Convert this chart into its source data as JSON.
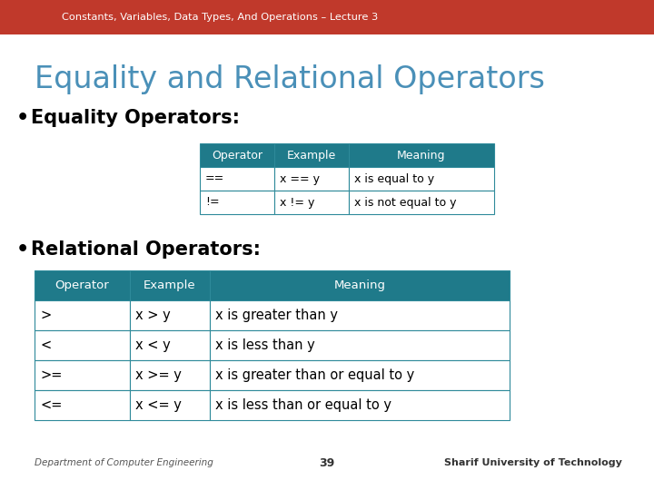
{
  "header_text": "Constants, Variables, Data Types, And Operations – Lecture 3",
  "header_bg": "#c0392b",
  "header_text_color": "#ffffff",
  "slide_bg": "#ffffff",
  "title": "Equality and Relational Operators",
  "title_color": "#4a90b8",
  "bullet1": "Equality Operators:",
  "bullet2": "Relational Operators:",
  "bullet_color": "#000000",
  "table_header_bg": "#1f7a8a",
  "table_header_text": "#ffffff",
  "table_border_color": "#2e8a9a",
  "table_data_bg": "#ffffff",
  "table_data_text": "#000000",
  "eq_table": {
    "headers": [
      "Operator",
      "Example",
      "Meaning"
    ],
    "rows": [
      [
        "==",
        "x == y",
        "x is equal to y"
      ],
      [
        "!=",
        "x != y",
        "x is not equal to y"
      ]
    ]
  },
  "rel_table": {
    "headers": [
      "Operator",
      "Example",
      "Meaning"
    ],
    "rows": [
      [
        ">",
        "x > y",
        "x is greater than y"
      ],
      [
        "<",
        "x < y",
        "x is less than y"
      ],
      [
        ">=",
        "x >= y",
        "x is greater than or equal to y"
      ],
      [
        "<=",
        "x <= y",
        "x is less than or equal to y"
      ]
    ]
  },
  "footer_left": "Department of Computer Engineering",
  "footer_center": "39",
  "footer_right": "Sharif University of Technology"
}
